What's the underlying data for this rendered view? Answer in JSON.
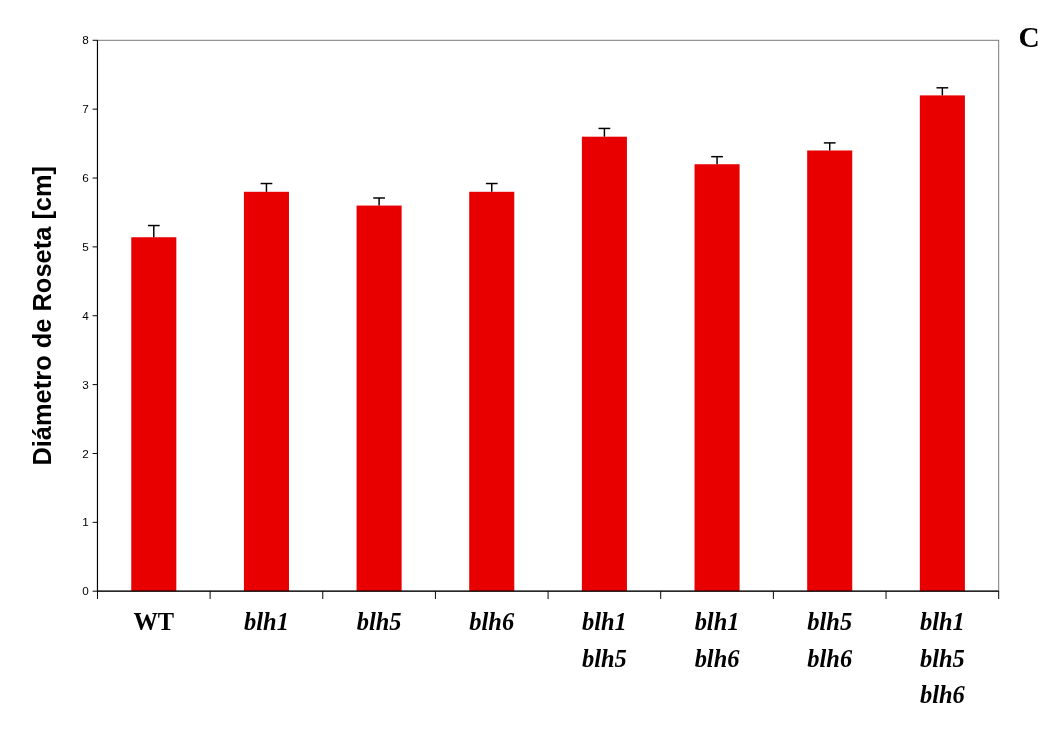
{
  "chart_data": {
    "type": "bar",
    "ylabel": "Diámetro de Roseta [cm]",
    "categories": [
      "WT",
      "blh1",
      "blh5",
      "blh6",
      "blh1\nblh5",
      "blh1\nblh6",
      "blh5\nblh6",
      "blh1\nblh5\nblh6"
    ],
    "values": [
      5.14,
      5.8,
      5.6,
      5.8,
      6.6,
      6.2,
      6.4,
      7.2
    ],
    "errors": [
      0.17,
      0.12,
      0.11,
      0.12,
      0.12,
      0.11,
      0.11,
      0.11
    ],
    "color": "#e80000",
    "ylim": [
      0,
      8
    ],
    "yticks": [
      0,
      1,
      2,
      3,
      4,
      5,
      6,
      7,
      8
    ],
    "grid": false,
    "annotations": [
      "C"
    ]
  }
}
